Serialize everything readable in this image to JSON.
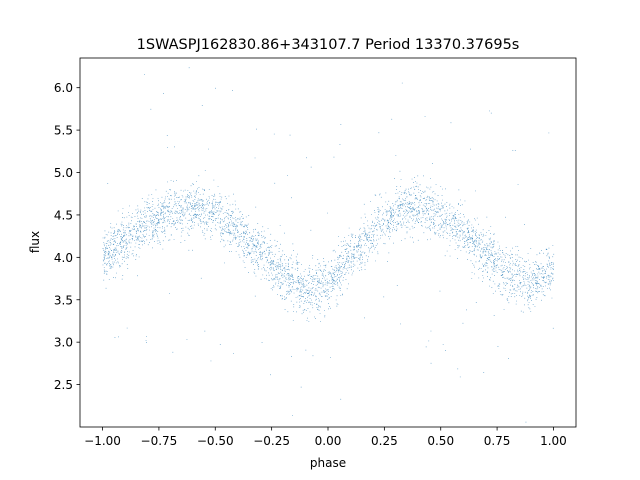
{
  "chart_data": {
    "type": "scatter",
    "title": "1SWASPJ162830.86+343107.7 Period 13370.37695s",
    "xlabel": "phase",
    "ylabel": "flux",
    "xlim": [
      -1.1,
      1.1
    ],
    "ylim": [
      2.0,
      6.35
    ],
    "xticks": [
      -1.0,
      -0.75,
      -0.5,
      -0.25,
      0.0,
      0.25,
      0.5,
      0.75,
      1.0
    ],
    "xtick_labels": [
      "−1.00",
      "−0.75",
      "−0.50",
      "−0.25",
      "0.00",
      "0.25",
      "0.50",
      "0.75",
      "1.00"
    ],
    "yticks": [
      2.5,
      3.0,
      3.5,
      4.0,
      4.5,
      5.0,
      5.5,
      6.0
    ],
    "ytick_labels": [
      "2.5",
      "3.0",
      "3.5",
      "4.0",
      "4.5",
      "5.0",
      "5.5",
      "6.0"
    ],
    "marker_color": "#1f77b4",
    "grid": false,
    "series": [
      {
        "phase": [
          -1.0,
          -0.9,
          -0.8,
          -0.7,
          -0.6,
          -0.5,
          -0.4,
          -0.3,
          -0.2,
          -0.1,
          0.0,
          0.1,
          0.2,
          0.3,
          0.4,
          0.5,
          0.6,
          0.7,
          0.8,
          0.9,
          1.0
        ],
        "flux_center": [
          4.0,
          4.2,
          4.4,
          4.55,
          4.6,
          4.5,
          4.3,
          4.05,
          3.8,
          3.6,
          3.7,
          4.0,
          4.3,
          4.55,
          4.6,
          4.5,
          4.3,
          4.05,
          3.8,
          3.7,
          3.85
        ],
        "flux_scatter": 0.3,
        "n_points": 40000
      }
    ]
  }
}
